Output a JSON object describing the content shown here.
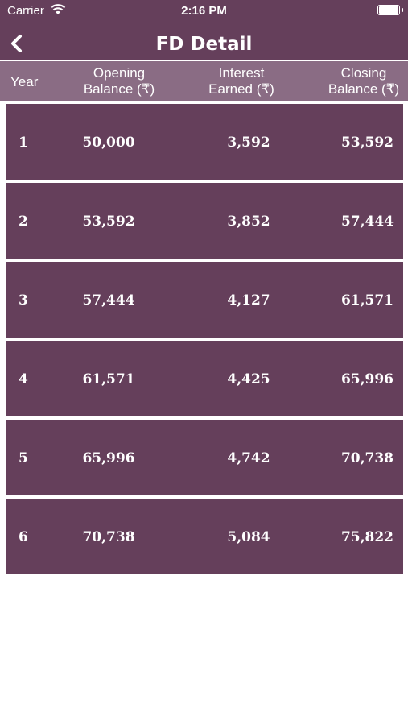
{
  "status_bar": {
    "carrier": "Carrier",
    "time": "2:16 PM"
  },
  "nav": {
    "title": "FD Detail",
    "back_icon": "chevron-left-icon"
  },
  "table": {
    "headers": {
      "year": "Year",
      "opening_line1": "Opening",
      "opening_line2": "Balance (₹)",
      "interest_line1": "Interest",
      "interest_line2": "Earned (₹)",
      "closing_line1": "Closing",
      "closing_line2": "Balance (₹)"
    },
    "rows": [
      {
        "year": "1",
        "opening": "50,000",
        "interest": "3,592",
        "closing": "53,592"
      },
      {
        "year": "2",
        "opening": "53,592",
        "interest": "3,852",
        "closing": "57,444"
      },
      {
        "year": "3",
        "opening": "57,444",
        "interest": "4,127",
        "closing": "61,571"
      },
      {
        "year": "4",
        "opening": "61,571",
        "interest": "4,425",
        "closing": "65,996"
      },
      {
        "year": "5",
        "opening": "65,996",
        "interest": "4,742",
        "closing": "70,738"
      },
      {
        "year": "6",
        "opening": "70,738",
        "interest": "5,084",
        "closing": "75,822"
      }
    ]
  },
  "colors": {
    "nav_bg": "#653f5b",
    "header_bg": "#8a6c84",
    "row_bg": "#653f5b",
    "text": "#ffffff"
  }
}
